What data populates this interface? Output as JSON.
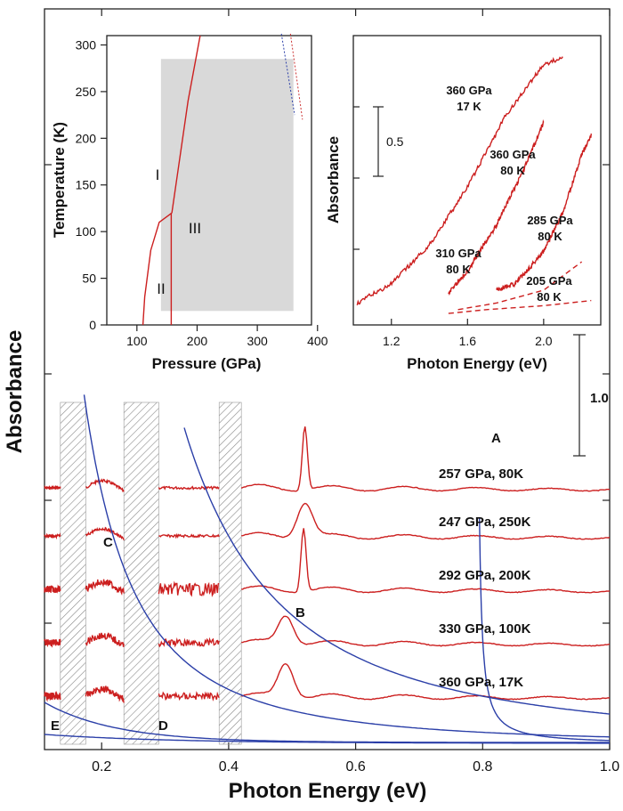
{
  "chart_data": [
    {
      "type": "line",
      "id": "main",
      "xlabel": "Photon Energy (eV)",
      "ylabel": "Absorbance",
      "xlim": [
        0.11,
        1.0
      ],
      "xticks": [
        "0.2",
        "0.4",
        "0.6",
        "0.8",
        "1.0"
      ],
      "xtick_values": [
        0.2,
        0.4,
        0.6,
        0.8,
        1.0
      ],
      "scale_bar": {
        "label": "1.0",
        "value": 1.0
      },
      "hatched_regions": [
        [
          0.135,
          0.175
        ],
        [
          0.235,
          0.29
        ],
        [
          0.385,
          0.42
        ]
      ],
      "series": [
        {
          "name": "257 GPa, 80K",
          "color": "#cc1f1f",
          "peak_eV": 0.52,
          "peak_height": 0.55,
          "offset": 4.0
        },
        {
          "name": "247 GPa, 250K",
          "color": "#cc1f1f",
          "peak_eV": 0.52,
          "peak_height": 0.3,
          "offset": 3.0
        },
        {
          "name": "292 GPa, 200K",
          "color": "#cc1f1f",
          "peak_eV": 0.518,
          "peak_height": 0.55,
          "offset": 2.0
        },
        {
          "name": "330 GPa, 100K",
          "color": "#cc1f1f",
          "peak_eV": 0.49,
          "peak_height": 0.25,
          "offset": 1.0
        },
        {
          "name": "360 GPa, 17K",
          "color": "#cc1f1f",
          "peak_eV": 0.49,
          "peak_height": 0.3,
          "offset": 0.0
        }
      ],
      "fit_curves": [
        {
          "name": "A",
          "color": "#2b3fa8"
        },
        {
          "name": "B",
          "color": "#2b3fa8"
        },
        {
          "name": "C",
          "color": "#2b3fa8"
        },
        {
          "name": "D",
          "color": "#2b3fa8"
        },
        {
          "name": "E",
          "color": "#2b3fa8"
        }
      ]
    },
    {
      "type": "line",
      "id": "phase-diagram",
      "xlabel": "Pressure (GPa)",
      "ylabel": "Temperature (K)",
      "xlim": [
        50,
        390
      ],
      "ylim": [
        0,
        310
      ],
      "xticks": [
        "100",
        "200",
        "300",
        "400"
      ],
      "yticks": [
        "0",
        "50",
        "100",
        "150",
        "200",
        "250",
        "300"
      ],
      "shaded_region": {
        "p": [
          140,
          360
        ],
        "t": [
          15,
          285
        ]
      },
      "phase_labels": [
        "I",
        "II",
        "III"
      ],
      "phase_boundary_I_III": [
        [
          158,
          120
        ],
        [
          185,
          240
        ],
        [
          205,
          310
        ]
      ],
      "phase_boundary_I_II": [
        [
          110,
          0
        ],
        [
          113,
          30
        ],
        [
          123,
          80
        ],
        [
          137,
          110
        ],
        [
          158,
          120
        ]
      ],
      "phase_boundary_II_III": [
        [
          157,
          0
        ],
        [
          157,
          120
        ]
      ]
    },
    {
      "type": "line",
      "id": "absorption-edge",
      "xlabel": "Photon Energy (eV)",
      "ylabel": "Absorbance",
      "xlim": [
        1.0,
        2.3
      ],
      "xticks": [
        "1.2",
        "1.6",
        "2.0"
      ],
      "scale_bar": {
        "label": "0.5",
        "value": 0.5
      },
      "series": [
        {
          "name": "360 GPa\n17 K",
          "color": "#cc1f1f",
          "points": [
            [
              1.02,
              0.1
            ],
            [
              1.2,
              0.25
            ],
            [
              1.4,
              0.55
            ],
            [
              1.6,
              1.0
            ],
            [
              1.8,
              1.55
            ],
            [
              2.0,
              1.95
            ],
            [
              2.1,
              2.0
            ]
          ]
        },
        {
          "name": "360 GPa\n80 K",
          "color": "#cc1f1f",
          "points": [
            [
              1.5,
              0.18
            ],
            [
              1.6,
              0.35
            ],
            [
              1.75,
              0.7
            ],
            [
              1.9,
              1.15
            ],
            [
              2.0,
              1.5
            ]
          ]
        },
        {
          "name": "310 GPa\n80 K",
          "color": "#cc1f1f",
          "points": [
            [
              1.75,
              0.2
            ],
            [
              1.85,
              0.25
            ],
            [
              2.0,
              0.5
            ],
            [
              2.1,
              0.8
            ],
            [
              2.2,
              1.25
            ],
            [
              2.25,
              1.4
            ]
          ]
        },
        {
          "name": "285 GPa\n80 K",
          "color": "#cc1f1f",
          "dashed": true
        },
        {
          "name": "205 GPa\n80 K",
          "color": "#cc1f1f",
          "dashed": true
        }
      ]
    }
  ]
}
